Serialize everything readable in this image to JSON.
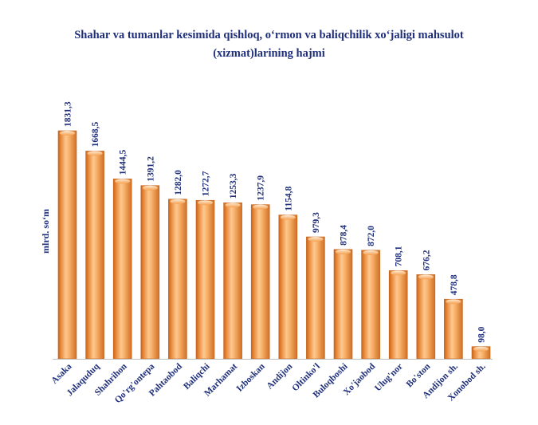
{
  "chart_data": {
    "type": "bar",
    "title_lines": [
      "Shahar va tumanlar kesimida qishloq, o‘rmon va baliqchilik xo‘jaligi mahsulot",
      "(xizmat)larining hajmi"
    ],
    "ylabel": "mlrd. so‘m",
    "xlabel": "",
    "categories": [
      "Asaka",
      "Jalaquduq",
      "Shahrihon",
      "Qo'rg'ontepa",
      "Pahtaobod",
      "Baliqchi",
      "Marhamat",
      "Izboskan",
      "Andijon",
      "Oltinko'l",
      "Buloqboshi",
      "Xo'jaobod",
      "Ulug'nor",
      "Bo'ston",
      "Andijon sh.",
      "Xonobod sh."
    ],
    "values": [
      1831.3,
      1668.5,
      1444.5,
      1391.2,
      1282.0,
      1272.7,
      1253.3,
      1237.9,
      1154.8,
      979.3,
      878.4,
      872.0,
      708.1,
      676.2,
      478.8,
      98.0
    ],
    "value_labels": [
      "1831,3",
      "1668,5",
      "1444,5",
      "1391,2",
      "1282,0",
      "1272,7",
      "1253,3",
      "1237,9",
      "1154,8",
      "979,3",
      "878,4",
      "872,0",
      "708,1",
      "676,2",
      "478,8",
      "98,0"
    ],
    "ylim": [
      0,
      1831.3
    ],
    "grid": false,
    "legend": "none",
    "colors": {
      "bar": "#f59d4a",
      "bar_dark": "#c8641c",
      "bar_light": "#fde3c4",
      "title": "#1f2f7a",
      "labels": "#1f2f7a",
      "axis": "#bfbfbf"
    }
  }
}
